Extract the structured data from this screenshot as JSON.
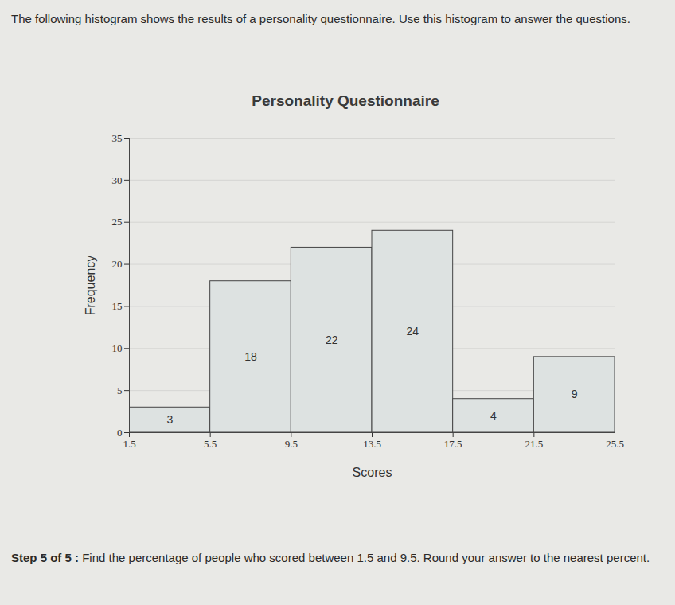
{
  "page": {
    "intro": "The following histogram shows the results of a personality questionnaire. Use this histogram to answer the questions.",
    "step": "Step 5 of 5 :",
    "question": "Find the percentage of people who scored between 1.5 and 9.5. Round your answer to the nearest percent."
  },
  "chart_data": {
    "type": "histogram",
    "title": "Personality Questionnaire",
    "x_label": "Scores",
    "y_label": "Frequency",
    "bins": [
      1.5,
      5.5,
      9.5,
      13.5,
      17.5,
      21.5,
      25.5
    ],
    "values": [
      3,
      18,
      22,
      24,
      4,
      9
    ],
    "color": "#dde2e1",
    "xlim": [
      1.5,
      25.5
    ],
    "xticks": [
      1.5,
      5.5,
      9.5,
      13.5,
      17.5,
      21.5,
      25.5
    ],
    "ylim": [
      0,
      35
    ],
    "yticks": [
      0,
      5,
      10,
      15,
      20,
      25,
      30,
      35
    ],
    "grid": true,
    "data_labels": true
  }
}
